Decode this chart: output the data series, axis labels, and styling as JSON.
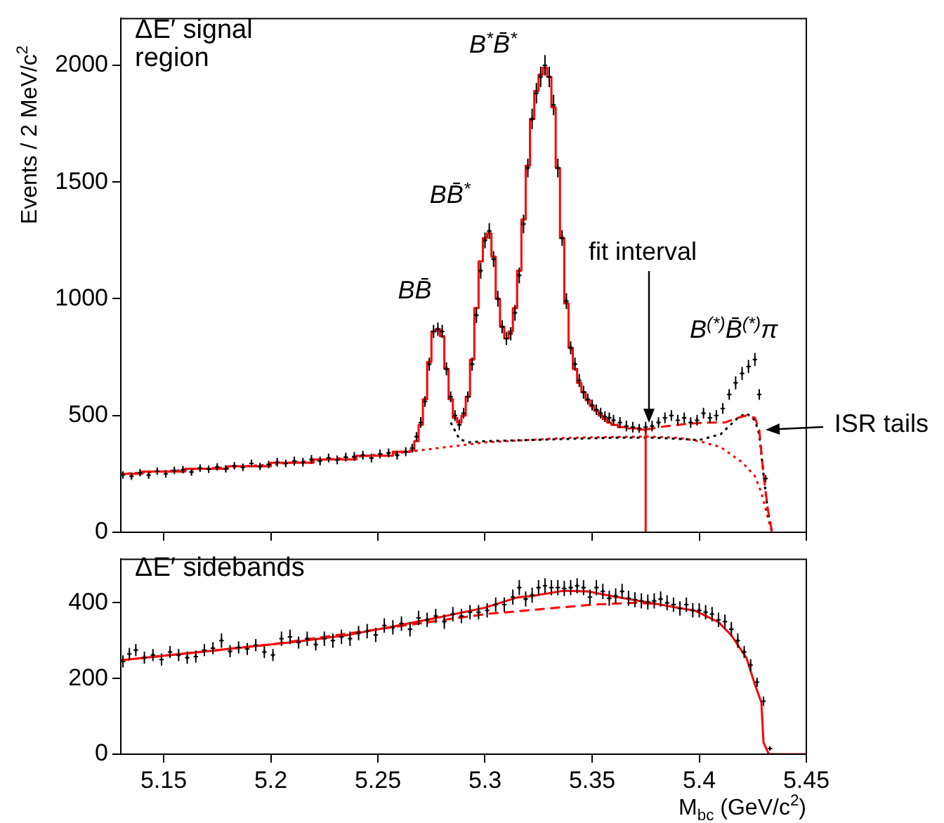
{
  "chart_data": [
    {
      "type": "scatter",
      "ylabel": "Events / 2 MeV/c$^{2}$",
      "xlim": [
        5.13,
        5.45
      ],
      "xticks": [
        5.15,
        5.2,
        5.25,
        5.3,
        5.35,
        5.4,
        5.45
      ],
      "ylim": [
        0,
        2200
      ],
      "yticks": [
        0,
        500,
        1000,
        1500,
        2000
      ],
      "tick_labels": "y",
      "grid": false,
      "legend": false,
      "annotations": [
        "ΔE′ signal region",
        {
          "text": "BB̄",
          "x": 5.279,
          "y": 870
        },
        {
          "text": "BB̄$^{*}$",
          "x": 5.302,
          "y": 1290
        },
        {
          "text": "B$^{*}$B̄$^{*}$",
          "x": 5.328,
          "y": 2000
        },
        {
          "text": "B$^{(*)}$B̄$^{(*)}$π",
          "x": 5.424,
          "y": 720
        },
        "fit interval",
        {
          "text": "ISR tails",
          "x": 5.428,
          "y": 440
        }
      ],
      "series": [
        {
          "type": "line",
          "color": "#ff0000",
          "line_style": "dotted",
          "x": [
            5.13,
            5.2,
            5.26,
            5.3,
            5.34,
            5.375,
            5.39,
            5.4,
            5.41,
            5.42,
            5.426,
            5.429,
            5.431,
            5.433,
            5.434
          ],
          "values": [
            250,
            290,
            340,
            385,
            405,
            410,
            405,
            390,
            365,
            300,
            240,
            170,
            100,
            30,
            0
          ]
        },
        {
          "type": "line",
          "color": "#000000",
          "line_style": "dotted",
          "x": [
            5.284,
            5.288,
            5.292,
            5.3,
            5.32,
            5.34,
            5.36,
            5.38,
            5.4,
            5.41,
            5.418,
            5.422,
            5.426,
            5.428,
            5.43,
            5.432,
            5.434
          ],
          "values": [
            470,
            400,
            385,
            390,
            395,
            400,
            405,
            405,
            395,
            420,
            490,
            510,
            480,
            420,
            250,
            90,
            0
          ]
        },
        {
          "type": "line",
          "color": "#ff0000",
          "line_style": "dashed",
          "x": [
            5.375,
            5.385,
            5.395,
            5.405,
            5.412,
            5.418,
            5.422,
            5.426,
            5.428,
            5.43,
            5.432,
            5.434
          ],
          "values": [
            440,
            455,
            465,
            470,
            470,
            490,
            500,
            490,
            440,
            250,
            100,
            0
          ]
        },
        {
          "type": "step",
          "color": "#ff0000",
          "line_style": "solid",
          "x": [
            5.13,
            5.15,
            5.17,
            5.19,
            5.21,
            5.23,
            5.25,
            5.264,
            5.266,
            5.268,
            5.27,
            5.272,
            5.274,
            5.276,
            5.278,
            5.28,
            5.282,
            5.284,
            5.286,
            5.288,
            5.29,
            5.292,
            5.294,
            5.296,
            5.298,
            5.3,
            5.302,
            5.304,
            5.306,
            5.308,
            5.31,
            5.312,
            5.314,
            5.316,
            5.318,
            5.32,
            5.322,
            5.324,
            5.326,
            5.328,
            5.33,
            5.332,
            5.334,
            5.336,
            5.338,
            5.34,
            5.342,
            5.344,
            5.346,
            5.348,
            5.35,
            5.352,
            5.354,
            5.356,
            5.358,
            5.36,
            5.364,
            5.368,
            5.375
          ],
          "values": [
            250,
            260,
            272,
            283,
            298,
            312,
            328,
            345,
            350,
            390,
            460,
            570,
            730,
            860,
            870,
            840,
            700,
            570,
            490,
            470,
            500,
            580,
            740,
            960,
            1160,
            1260,
            1280,
            1180,
            1000,
            880,
            830,
            860,
            960,
            1120,
            1340,
            1570,
            1770,
            1890,
            1960,
            1990,
            1950,
            1820,
            1560,
            1260,
            980,
            790,
            700,
            640,
            600,
            565,
            540,
            520,
            500,
            485,
            470,
            460,
            450,
            445,
            440
          ]
        },
        {
          "type": "line",
          "color": "#ff0000",
          "line_style": "solid",
          "x": [
            5.375,
            5.375
          ],
          "values": [
            0,
            440
          ]
        },
        {
          "type": "scatter",
          "color": "#000000",
          "marker": "cross",
          "x": [
            5.131,
            5.135,
            5.139,
            5.143,
            5.147,
            5.151,
            5.155,
            5.159,
            5.163,
            5.167,
            5.171,
            5.175,
            5.179,
            5.183,
            5.187,
            5.191,
            5.195,
            5.199,
            5.203,
            5.207,
            5.211,
            5.215,
            5.219,
            5.223,
            5.227,
            5.231,
            5.235,
            5.239,
            5.243,
            5.247,
            5.251,
            5.255,
            5.259,
            5.263,
            5.266,
            5.268,
            5.27,
            5.272,
            5.274,
            5.276,
            5.278,
            5.28,
            5.282,
            5.284,
            5.286,
            5.288,
            5.29,
            5.292,
            5.294,
            5.296,
            5.298,
            5.3,
            5.302,
            5.304,
            5.306,
            5.308,
            5.31,
            5.312,
            5.314,
            5.316,
            5.318,
            5.32,
            5.322,
            5.324,
            5.326,
            5.328,
            5.33,
            5.332,
            5.334,
            5.336,
            5.338,
            5.34,
            5.342,
            5.344,
            5.346,
            5.348,
            5.35,
            5.352,
            5.354,
            5.356,
            5.358,
            5.36,
            5.363,
            5.366,
            5.369,
            5.372,
            5.375,
            5.378,
            5.381,
            5.384,
            5.387,
            5.39,
            5.393,
            5.396,
            5.399,
            5.402,
            5.405,
            5.408,
            5.411,
            5.414,
            5.417,
            5.42,
            5.423,
            5.426,
            5.428,
            5.431
          ],
          "values": [
            245,
            240,
            255,
            245,
            262,
            250,
            265,
            268,
            258,
            275,
            270,
            280,
            272,
            285,
            278,
            295,
            282,
            290,
            300,
            295,
            305,
            300,
            312,
            305,
            318,
            310,
            322,
            325,
            330,
            318,
            335,
            340,
            330,
            345,
            360,
            410,
            470,
            560,
            720,
            860,
            870,
            860,
            700,
            580,
            500,
            460,
            510,
            580,
            720,
            930,
            1120,
            1250,
            1290,
            1170,
            1000,
            880,
            830,
            850,
            940,
            1100,
            1320,
            1560,
            1770,
            1880,
            1950,
            2000,
            1950,
            1830,
            1560,
            1260,
            990,
            790,
            720,
            650,
            600,
            570,
            545,
            525,
            510,
            495,
            490,
            480,
            470,
            455,
            450,
            445,
            450,
            455,
            470,
            490,
            500,
            480,
            490,
            470,
            480,
            510,
            490,
            500,
            530,
            590,
            640,
            680,
            710,
            740,
            590,
            230
          ],
          "errors": [
            16,
            16,
            16,
            16,
            16,
            16,
            16,
            16,
            16,
            16,
            16,
            16,
            16,
            16,
            16,
            16,
            16,
            16,
            19,
            16,
            19,
            19,
            19,
            19,
            19,
            19,
            19,
            19,
            19,
            19,
            19,
            19,
            19,
            19,
            19,
            19,
            23,
            23,
            28,
            28,
            28,
            28,
            28,
            23,
            23,
            23,
            23,
            23,
            28,
            34,
            34,
            34,
            34,
            34,
            34,
            28,
            28,
            28,
            34,
            34,
            40,
            40,
            44,
            44,
            44,
            44,
            44,
            44,
            40,
            34,
            34,
            28,
            28,
            28,
            28,
            23,
            23,
            23,
            23,
            23,
            23,
            23,
            23,
            23,
            23,
            19,
            23,
            23,
            23,
            23,
            23,
            23,
            23,
            23,
            23,
            23,
            23,
            23,
            23,
            23,
            28,
            28,
            28,
            28,
            23,
            16
          ]
        }
      ]
    },
    {
      "type": "scatter",
      "xlabel": "M$_{bc}$ (GeV/c$^{2}$)",
      "xlim": [
        5.13,
        5.45
      ],
      "xticks": [
        5.15,
        5.2,
        5.25,
        5.3,
        5.35,
        5.4,
        5.45
      ],
      "ylim": [
        0,
        515
      ],
      "yticks": [
        0,
        200,
        400
      ],
      "grid": false,
      "legend": false,
      "annotations": [
        "ΔE′ sidebands"
      ],
      "series": [
        {
          "type": "line",
          "color": "#ff0000",
          "line_style": "dashed",
          "x": [
            5.13,
            5.2,
            5.25,
            5.3,
            5.33,
            5.35,
            5.37,
            5.38
          ],
          "values": [
            248,
            290,
            330,
            370,
            385,
            395,
            400,
            397
          ]
        },
        {
          "type": "line",
          "color": "#ff0000",
          "line_style": "solid",
          "x": [
            5.13,
            5.15,
            5.17,
            5.19,
            5.21,
            5.235,
            5.257,
            5.278,
            5.3,
            5.315,
            5.322,
            5.337,
            5.348,
            5.359,
            5.38,
            5.398,
            5.409,
            5.415,
            5.422,
            5.426,
            5.429,
            5.43,
            5.4325,
            5.45
          ],
          "values": [
            248,
            260,
            272,
            284,
            296,
            314,
            337,
            361,
            387,
            414,
            418,
            432,
            430,
            418,
            397,
            379,
            349,
            314,
            255,
            184,
            137,
            31,
            0,
            0
          ]
        },
        {
          "type": "scatter",
          "color": "#000000",
          "marker": "cross",
          "x": [
            5.131,
            5.134,
            5.137,
            5.141,
            5.145,
            5.149,
            5.153,
            5.157,
            5.161,
            5.165,
            5.169,
            5.173,
            5.177,
            5.181,
            5.185,
            5.189,
            5.193,
            5.197,
            5.201,
            5.205,
            5.209,
            5.213,
            5.217,
            5.221,
            5.225,
            5.229,
            5.233,
            5.237,
            5.241,
            5.245,
            5.249,
            5.253,
            5.257,
            5.261,
            5.265,
            5.269,
            5.273,
            5.277,
            5.281,
            5.285,
            5.289,
            5.293,
            5.297,
            5.301,
            5.305,
            5.309,
            5.313,
            5.316,
            5.319,
            5.322,
            5.325,
            5.328,
            5.331,
            5.334,
            5.337,
            5.34,
            5.343,
            5.346,
            5.349,
            5.352,
            5.355,
            5.358,
            5.361,
            5.364,
            5.367,
            5.37,
            5.373,
            5.376,
            5.379,
            5.382,
            5.385,
            5.388,
            5.391,
            5.394,
            5.397,
            5.4,
            5.403,
            5.406,
            5.409,
            5.412,
            5.415,
            5.418,
            5.421,
            5.424,
            5.427,
            5.43,
            5.433
          ],
          "values": [
            245,
            265,
            275,
            255,
            262,
            250,
            270,
            262,
            255,
            258,
            275,
            280,
            300,
            272,
            282,
            278,
            288,
            270,
            262,
            305,
            310,
            295,
            305,
            290,
            305,
            300,
            310,
            305,
            320,
            325,
            315,
            340,
            335,
            345,
            330,
            360,
            355,
            365,
            350,
            370,
            365,
            375,
            375,
            380,
            395,
            395,
            415,
            440,
            410,
            420,
            440,
            445,
            440,
            440,
            438,
            440,
            445,
            440,
            415,
            440,
            430,
            412,
            418,
            430,
            412,
            408,
            405,
            402,
            405,
            410,
            400,
            395,
            385,
            395,
            380,
            380,
            375,
            370,
            355,
            350,
            330,
            300,
            270,
            235,
            190,
            140,
            15
          ],
          "errors": [
            16,
            16,
            16,
            16,
            16,
            16,
            16,
            16,
            16,
            16,
            16,
            16,
            19,
            16,
            16,
            16,
            16,
            16,
            16,
            19,
            19,
            16,
            19,
            16,
            19,
            19,
            19,
            19,
            19,
            19,
            19,
            19,
            19,
            19,
            19,
            19,
            19,
            19,
            19,
            19,
            19,
            19,
            19,
            19,
            19,
            19,
            20,
            20,
            20,
            20,
            20,
            20,
            20,
            20,
            20,
            20,
            20,
            20,
            20,
            20,
            20,
            20,
            20,
            20,
            20,
            20,
            20,
            20,
            20,
            20,
            20,
            19,
            19,
            19,
            19,
            19,
            19,
            19,
            19,
            19,
            19,
            19,
            16,
            16,
            12,
            12,
            4
          ]
        }
      ]
    }
  ]
}
